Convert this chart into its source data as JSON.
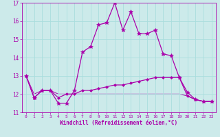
{
  "xlabel": "Windchill (Refroidissement éolien,°C)",
  "bg_color": "#cceaea",
  "grid_color": "#aadddd",
  "line_color": "#aa00aa",
  "xlim": [
    -0.5,
    23.5
  ],
  "ylim": [
    11,
    17
  ],
  "yticks": [
    11,
    12,
    13,
    14,
    15,
    16,
    17
  ],
  "xticks": [
    0,
    1,
    2,
    3,
    4,
    5,
    6,
    7,
    8,
    9,
    10,
    11,
    12,
    13,
    14,
    15,
    16,
    17,
    18,
    19,
    20,
    21,
    22,
    23
  ],
  "series": [
    {
      "x": [
        0,
        1,
        2,
        3,
        4,
        5,
        6,
        7,
        8,
        9,
        10,
        11,
        12,
        13,
        14,
        15,
        16,
        17,
        18,
        19,
        20,
        21,
        22,
        23
      ],
      "y": [
        13.0,
        11.8,
        12.2,
        12.2,
        11.5,
        11.5,
        12.2,
        14.3,
        14.6,
        15.8,
        15.9,
        17.0,
        15.5,
        16.5,
        15.3,
        15.3,
        15.5,
        14.2,
        14.1,
        12.9,
        12.1,
        11.7,
        11.6,
        11.6
      ],
      "marker": "*",
      "markersize": 4,
      "linewidth": 0.9,
      "zorder": 3
    },
    {
      "x": [
        0,
        1,
        2,
        3,
        4,
        5,
        6,
        7,
        8,
        9,
        10,
        11,
        12,
        13,
        14,
        15,
        16,
        17,
        18,
        19,
        20,
        21,
        22,
        23
      ],
      "y": [
        13.0,
        11.8,
        12.2,
        12.2,
        11.8,
        12.0,
        12.0,
        12.2,
        12.2,
        12.3,
        12.4,
        12.5,
        12.5,
        12.6,
        12.7,
        12.8,
        12.9,
        12.9,
        12.9,
        12.9,
        11.9,
        11.7,
        11.6,
        11.6
      ],
      "marker": "D",
      "markersize": 2,
      "linewidth": 0.9,
      "zorder": 2
    },
    {
      "x": [
        0,
        1,
        2,
        3,
        4,
        5,
        6,
        7,
        8,
        9,
        10,
        11,
        12,
        13,
        14,
        15,
        16,
        17,
        18,
        19,
        20,
        21,
        22,
        23
      ],
      "y": [
        13.0,
        12.0,
        12.2,
        12.2,
        12.0,
        12.0,
        12.0,
        12.0,
        12.0,
        12.0,
        12.0,
        12.0,
        12.0,
        12.0,
        12.0,
        12.0,
        12.0,
        12.0,
        12.0,
        12.0,
        11.9,
        11.7,
        11.6,
        11.6
      ],
      "marker": null,
      "markersize": 0,
      "linewidth": 0.7,
      "zorder": 1
    }
  ]
}
